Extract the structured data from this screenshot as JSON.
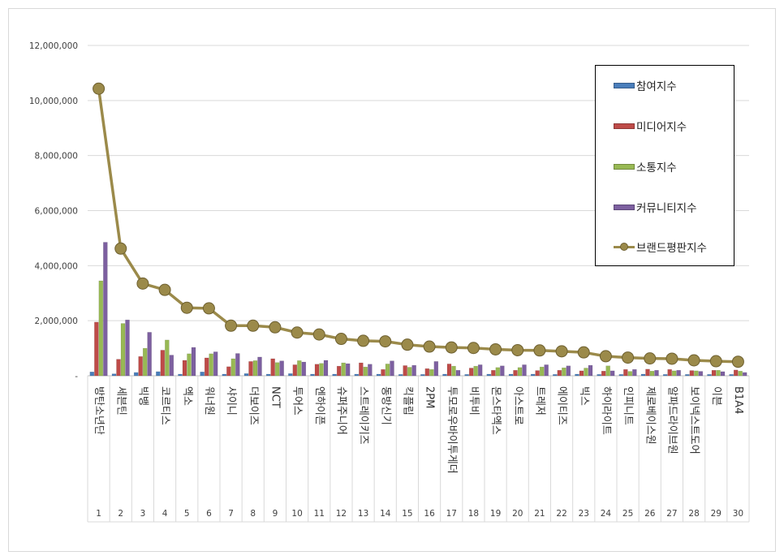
{
  "chart_data": {
    "type": "bar",
    "y_ticks": [
      "-",
      "2,000,000",
      "4,000,000",
      "6,000,000",
      "8,000,000",
      "10,000,000",
      "12,000,000"
    ],
    "ylim": [
      0,
      12000000
    ],
    "grid": true,
    "legend_position": "top-right",
    "categories": [
      "방탄소년단",
      "세븐틴",
      "빅뱅",
      "코르티스",
      "엑소",
      "워너원",
      "샤이니",
      "더보이즈",
      "NCT",
      "투어스",
      "엔하이픈",
      "슈퍼주니어",
      "스트레이키즈",
      "동방신기",
      "킥플립",
      "2PM",
      "투모로우바이투게더",
      "비투비",
      "몬스타엑스",
      "아스트로",
      "트레저",
      "에이티즈",
      "빅스",
      "하이라이트",
      "인피니트",
      "제로베이스원",
      "알파드라이브원",
      "보이넥스트도어",
      "이븐",
      "B1A4"
    ],
    "ranks": [
      "1",
      "2",
      "3",
      "4",
      "5",
      "6",
      "7",
      "8",
      "9",
      "10",
      "11",
      "12",
      "13",
      "14",
      "15",
      "16",
      "17",
      "18",
      "19",
      "20",
      "21",
      "22",
      "23",
      "24",
      "25",
      "26",
      "27",
      "28",
      "29",
      "30"
    ],
    "series": [
      {
        "name": "참여지수",
        "color": "#4a7ebb",
        "values": [
          140000,
          70000,
          120000,
          150000,
          60000,
          140000,
          60000,
          80000,
          60000,
          80000,
          60000,
          60000,
          60000,
          60000,
          50000,
          50000,
          60000,
          50000,
          60000,
          60000,
          60000,
          50000,
          60000,
          50000,
          50000,
          60000,
          50000,
          50000,
          50000,
          50000
        ]
      },
      {
        "name": "미디어지수",
        "color": "#be4b48",
        "values": [
          1950000,
          600000,
          700000,
          930000,
          560000,
          650000,
          330000,
          520000,
          620000,
          400000,
          420000,
          350000,
          470000,
          230000,
          370000,
          260000,
          430000,
          280000,
          200000,
          200000,
          190000,
          200000,
          180000,
          170000,
          230000,
          240000,
          230000,
          190000,
          200000,
          210000
        ]
      },
      {
        "name": "소통지수",
        "color": "#98b954",
        "values": [
          3450000,
          1900000,
          1000000,
          1300000,
          800000,
          800000,
          620000,
          550000,
          480000,
          550000,
          450000,
          470000,
          320000,
          430000,
          310000,
          230000,
          350000,
          350000,
          300000,
          300000,
          320000,
          290000,
          280000,
          360000,
          160000,
          170000,
          180000,
          180000,
          200000,
          170000
        ]
      },
      {
        "name": "커뮤니티지수",
        "color": "#7d60a0",
        "values": [
          4850000,
          2030000,
          1580000,
          750000,
          1030000,
          870000,
          810000,
          680000,
          540000,
          500000,
          560000,
          440000,
          420000,
          540000,
          380000,
          520000,
          200000,
          400000,
          360000,
          400000,
          400000,
          360000,
          380000,
          180000,
          230000,
          200000,
          200000,
          160000,
          150000,
          120000
        ]
      },
      {
        "name": "브랜드평판지수",
        "color": "#9b8a4a",
        "type": "line",
        "values": [
          10430000,
          4620000,
          3350000,
          3120000,
          2470000,
          2450000,
          1820000,
          1820000,
          1760000,
          1570000,
          1500000,
          1340000,
          1270000,
          1250000,
          1130000,
          1060000,
          1030000,
          1010000,
          960000,
          930000,
          920000,
          890000,
          850000,
          710000,
          660000,
          630000,
          620000,
          560000,
          530000,
          510000
        ]
      }
    ]
  }
}
